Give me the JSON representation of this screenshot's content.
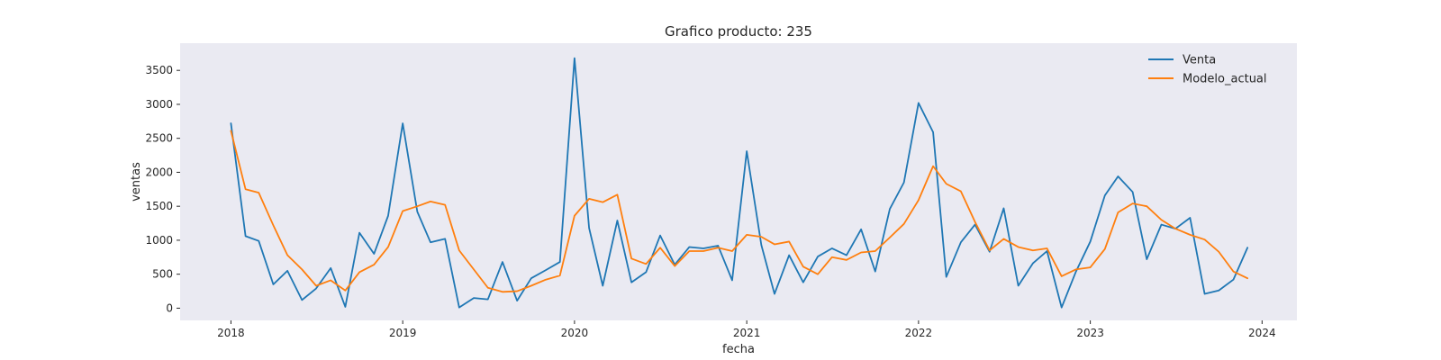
{
  "chart_data": {
    "type": "line",
    "title": "Grafico producto: 235",
    "xlabel": "fecha",
    "ylabel": "ventas",
    "xlim": [
      "2017-09-15",
      "2024-03-15"
    ],
    "ylim": [
      -180,
      3900
    ],
    "x_ticks": [
      "2018",
      "2019",
      "2020",
      "2021",
      "2022",
      "2023",
      "2024"
    ],
    "y_ticks": [
      0,
      500,
      1000,
      1500,
      2000,
      2500,
      3000,
      3500
    ],
    "grid": false,
    "legend_position": "top-right",
    "x": [
      "2018-01-01",
      "2018-02-01",
      "2018-03-01",
      "2018-04-01",
      "2018-05-01",
      "2018-06-01",
      "2018-07-01",
      "2018-08-01",
      "2018-09-01",
      "2018-10-01",
      "2018-11-01",
      "2018-12-01",
      "2019-01-01",
      "2019-02-01",
      "2019-03-01",
      "2019-04-01",
      "2019-05-01",
      "2019-06-01",
      "2019-07-01",
      "2019-08-01",
      "2019-09-01",
      "2019-10-01",
      "2019-11-01",
      "2019-12-01",
      "2020-01-01",
      "2020-02-01",
      "2020-03-01",
      "2020-04-01",
      "2020-05-01",
      "2020-06-01",
      "2020-07-01",
      "2020-08-01",
      "2020-09-01",
      "2020-10-01",
      "2020-11-01",
      "2020-12-01",
      "2021-01-01",
      "2021-02-01",
      "2021-03-01",
      "2021-04-01",
      "2021-05-01",
      "2021-06-01",
      "2021-07-01",
      "2021-08-01",
      "2021-09-01",
      "2021-10-01",
      "2021-11-01",
      "2021-12-01",
      "2022-01-01",
      "2022-02-01",
      "2022-03-01",
      "2022-04-01",
      "2022-05-01",
      "2022-06-01",
      "2022-07-01",
      "2022-08-01",
      "2022-09-01",
      "2022-10-01",
      "2022-11-01",
      "2022-12-01",
      "2023-01-01",
      "2023-02-01",
      "2023-03-01",
      "2023-04-01",
      "2023-05-01",
      "2023-06-01",
      "2023-07-01",
      "2023-08-01",
      "2023-09-01",
      "2023-10-01",
      "2023-11-01",
      "2023-12-01"
    ],
    "series": [
      {
        "name": "Venta",
        "color": "#1f77b4",
        "values": [
          2720,
          1060,
          990,
          350,
          550,
          120,
          290,
          590,
          20,
          1110,
          800,
          1360,
          2720,
          1420,
          970,
          1020,
          10,
          150,
          130,
          680,
          110,
          440,
          560,
          680,
          3680,
          1180,
          330,
          1290,
          380,
          530,
          1070,
          640,
          900,
          880,
          920,
          410,
          2310,
          930,
          210,
          780,
          380,
          760,
          880,
          780,
          1160,
          540,
          1460,
          1850,
          3020,
          2590,
          460,
          970,
          1230,
          830,
          1470,
          330,
          660,
          840,
          10,
          530,
          980,
          1660,
          1940,
          1710,
          720,
          1230,
          1170,
          1330,
          210,
          260,
          420,
          890
        ]
      },
      {
        "name": "Modelo_actual",
        "color": "#ff7f0e",
        "values": [
          2610,
          1750,
          1700,
          1220,
          780,
          570,
          330,
          410,
          260,
          530,
          640,
          900,
          1430,
          1500,
          1570,
          1520,
          850,
          570,
          300,
          240,
          250,
          330,
          420,
          480,
          1360,
          1610,
          1560,
          1670,
          730,
          650,
          890,
          620,
          840,
          840,
          890,
          840,
          1080,
          1050,
          940,
          980,
          610,
          500,
          750,
          710,
          820,
          840,
          1040,
          1240,
          1590,
          2090,
          1830,
          1720,
          1270,
          850,
          1020,
          900,
          850,
          880,
          470,
          570,
          600,
          870,
          1410,
          1540,
          1500,
          1300,
          1170,
          1080,
          1010,
          830,
          540,
          440
        ]
      }
    ]
  }
}
